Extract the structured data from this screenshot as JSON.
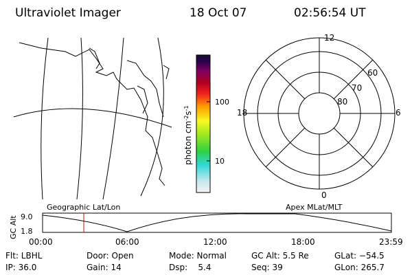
{
  "header": {
    "title": "Ultraviolet Imager",
    "date": "18 Oct 07",
    "time": "02:56:54 UT"
  },
  "colorbar": {
    "label": [
      "photon cm",
      "-2",
      "s",
      "-1"
    ],
    "ticks": [
      "100",
      "10"
    ]
  },
  "polar": {
    "hours": [
      "12",
      "6",
      "0",
      "18"
    ],
    "rings": [
      "60",
      "70",
      "80"
    ]
  },
  "altitude": {
    "left_label": "Geographic Lat/Lon",
    "right_label": "Apex MLat/MLT",
    "y_label": "GC Alt",
    "y_ticks": [
      "9.0",
      "1.8"
    ],
    "x_ticks": [
      "00:00",
      "06:00",
      "12:00",
      "18:00",
      "23:59"
    ]
  },
  "status": {
    "rows": [
      [
        "Flt: LBHL",
        "Door: Open",
        "Mode: Normal",
        "GC Alt: 5.5 Re",
        "GLat: −54.5"
      ],
      [
        "IP: 36.0",
        "Gain: 14",
        "Dsp:    5.4",
        "Seq: 39",
        "GLon: 265.7"
      ]
    ]
  }
}
